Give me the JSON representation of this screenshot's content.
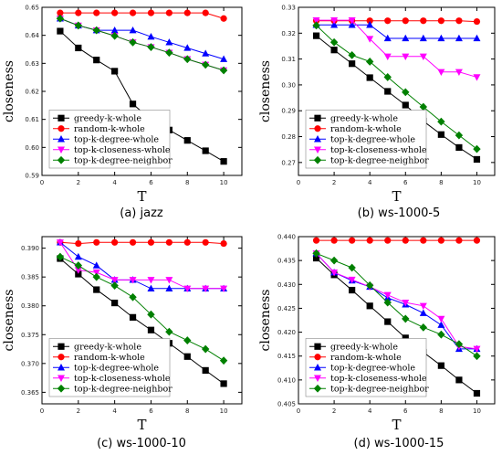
{
  "figure": {
    "ylabel": "closeness",
    "xlabel": "T"
  },
  "chart_data": [
    {
      "type": "line",
      "caption": "(a) jazz",
      "xlabel": "T",
      "ylabel": "closeness",
      "xlim": [
        0,
        11
      ],
      "ylim": [
        0.59,
        0.65
      ],
      "xticks": [
        "0",
        "2",
        "4",
        "6",
        "8",
        "10"
      ],
      "yticks": [
        "0.59",
        "0.60",
        "0.61",
        "0.62",
        "0.63",
        "0.64",
        "0.65"
      ],
      "legend_position": "bottom-left",
      "x": [
        1,
        2,
        3,
        4,
        5,
        6,
        7,
        8,
        9,
        10
      ],
      "series": [
        {
          "name": "greedy-k-whole",
          "color": "#000000",
          "marker": "square",
          "values": [
            0.6415,
            0.6355,
            0.6312,
            0.6272,
            0.6155,
            0.6098,
            0.6062,
            0.6025,
            0.5988,
            0.595
          ]
        },
        {
          "name": "random-k-whole",
          "color": "#ff0000",
          "marker": "circle",
          "values": [
            0.648,
            0.648,
            0.648,
            0.648,
            0.648,
            0.648,
            0.648,
            0.648,
            0.648,
            0.646
          ]
        },
        {
          "name": "top-k-degree-whole",
          "color": "#0000ff",
          "marker": "triangle-up",
          "values": [
            0.646,
            0.6435,
            0.6418,
            0.6418,
            0.6418,
            0.6395,
            0.6375,
            0.6355,
            0.6335,
            0.6315
          ]
        },
        {
          "name": "top-k-closeness-whole",
          "color": "#ff00ff",
          "marker": "triangle-down",
          "values": [
            0.646,
            0.6435,
            0.6418,
            0.6398,
            0.6375,
            0.6358,
            0.6338,
            0.6315,
            0.6295,
            0.6275
          ]
        },
        {
          "name": "top-k-degree-neighbor",
          "color": "#008000",
          "marker": "diamond",
          "values": [
            0.646,
            0.6435,
            0.6418,
            0.6398,
            0.6375,
            0.6358,
            0.6338,
            0.6315,
            0.6295,
            0.6275
          ]
        }
      ]
    },
    {
      "type": "line",
      "caption": "(b) ws-1000-5",
      "xlabel": "T",
      "ylabel": "closeness",
      "xlim": [
        0,
        11
      ],
      "ylim": [
        0.265,
        0.33
      ],
      "xticks": [
        "0",
        "2",
        "4",
        "6",
        "8",
        "10"
      ],
      "yticks": [
        "0.27",
        "0.28",
        "0.29",
        "0.30",
        "0.31",
        "0.32",
        "0.33"
      ],
      "legend_position": "bottom-left",
      "x": [
        1,
        2,
        3,
        4,
        5,
        6,
        7,
        8,
        9,
        10
      ],
      "series": [
        {
          "name": "greedy-k-whole",
          "color": "#000000",
          "marker": "square",
          "values": [
            0.319,
            0.3135,
            0.3082,
            0.3028,
            0.2975,
            0.2922,
            0.286,
            0.2808,
            0.2758,
            0.2712
          ]
        },
        {
          "name": "random-k-whole",
          "color": "#ff0000",
          "marker": "circle",
          "values": [
            0.3248,
            0.3248,
            0.3248,
            0.3248,
            0.3248,
            0.3248,
            0.3248,
            0.3248,
            0.3248,
            0.3245
          ]
        },
        {
          "name": "top-k-degree-whole",
          "color": "#0000ff",
          "marker": "triangle-up",
          "values": [
            0.3232,
            0.3232,
            0.3232,
            0.3232,
            0.318,
            0.318,
            0.318,
            0.318,
            0.318,
            0.318
          ]
        },
        {
          "name": "top-k-closeness-whole",
          "color": "#ff00ff",
          "marker": "triangle-down",
          "values": [
            0.325,
            0.325,
            0.325,
            0.3178,
            0.311,
            0.311,
            0.311,
            0.305,
            0.305,
            0.303
          ]
        },
        {
          "name": "top-k-degree-neighbor",
          "color": "#008000",
          "marker": "diamond",
          "values": [
            0.323,
            0.3165,
            0.3115,
            0.309,
            0.303,
            0.2972,
            0.2915,
            0.2858,
            0.2805,
            0.2752
          ]
        }
      ]
    },
    {
      "type": "line",
      "caption": "(c) ws-1000-10",
      "xlabel": "T",
      "ylabel": "closeness",
      "xlim": [
        0,
        11
      ],
      "ylim": [
        0.363,
        0.392
      ],
      "xticks": [
        "0",
        "2",
        "4",
        "6",
        "8",
        "10"
      ],
      "yticks": [
        "0.365",
        "0.370",
        "0.375",
        "0.380",
        "0.385",
        "0.390"
      ],
      "legend_position": "bottom-left",
      "x": [
        1,
        2,
        3,
        4,
        5,
        6,
        7,
        8,
        9,
        10
      ],
      "series": [
        {
          "name": "greedy-k-whole",
          "color": "#000000",
          "marker": "square",
          "values": [
            0.3882,
            0.3855,
            0.3828,
            0.3805,
            0.378,
            0.3758,
            0.3735,
            0.3712,
            0.3688,
            0.3665
          ]
        },
        {
          "name": "random-k-whole",
          "color": "#ff0000",
          "marker": "circle",
          "values": [
            0.391,
            0.3908,
            0.391,
            0.391,
            0.391,
            0.391,
            0.391,
            0.391,
            0.391,
            0.3908
          ]
        },
        {
          "name": "top-k-degree-whole",
          "color": "#0000ff",
          "marker": "triangle-up",
          "values": [
            0.391,
            0.3885,
            0.387,
            0.3845,
            0.3845,
            0.383,
            0.383,
            0.383,
            0.383,
            0.383
          ]
        },
        {
          "name": "top-k-closeness-whole",
          "color": "#ff00ff",
          "marker": "triangle-down",
          "values": [
            0.391,
            0.3862,
            0.3858,
            0.3845,
            0.3845,
            0.3845,
            0.3845,
            0.383,
            0.383,
            0.383
          ]
        },
        {
          "name": "top-k-degree-neighbor",
          "color": "#008000",
          "marker": "diamond",
          "values": [
            0.3885,
            0.387,
            0.385,
            0.3835,
            0.3815,
            0.3785,
            0.3755,
            0.374,
            0.3725,
            0.3705
          ]
        }
      ]
    },
    {
      "type": "line",
      "caption": "(d) ws-1000-15",
      "xlabel": "T",
      "ylabel": "closeness",
      "xlim": [
        0,
        11
      ],
      "ylim": [
        0.405,
        0.44
      ],
      "xticks": [
        "0",
        "2",
        "4",
        "6",
        "8",
        "10"
      ],
      "yticks": [
        "0.405",
        "0.410",
        "0.415",
        "0.420",
        "0.425",
        "0.430",
        "0.435",
        "0.440"
      ],
      "legend_position": "bottom-left",
      "x": [
        1,
        2,
        3,
        4,
        5,
        6,
        7,
        8,
        9,
        10
      ],
      "series": [
        {
          "name": "greedy-k-whole",
          "color": "#000000",
          "marker": "square",
          "values": [
            0.4355,
            0.432,
            0.4288,
            0.4255,
            0.4222,
            0.4188,
            0.4158,
            0.413,
            0.41,
            0.4072
          ]
        },
        {
          "name": "random-k-whole",
          "color": "#ff0000",
          "marker": "circle",
          "values": [
            0.4392,
            0.4392,
            0.4392,
            0.4392,
            0.4392,
            0.4392,
            0.4392,
            0.4392,
            0.4392,
            0.4392
          ]
        },
        {
          "name": "top-k-degree-whole",
          "color": "#0000ff",
          "marker": "triangle-up",
          "values": [
            0.4365,
            0.4325,
            0.4308,
            0.4295,
            0.4272,
            0.4258,
            0.424,
            0.4215,
            0.4165,
            0.4165
          ]
        },
        {
          "name": "top-k-closeness-whole",
          "color": "#ff00ff",
          "marker": "triangle-down",
          "values": [
            0.4365,
            0.4325,
            0.431,
            0.4295,
            0.4278,
            0.4262,
            0.4255,
            0.4228,
            0.417,
            0.4165
          ]
        },
        {
          "name": "top-k-degree-neighbor",
          "color": "#008000",
          "marker": "diamond",
          "values": [
            0.4365,
            0.435,
            0.4335,
            0.4298,
            0.4262,
            0.4228,
            0.421,
            0.4195,
            0.4175,
            0.415
          ]
        }
      ]
    }
  ]
}
